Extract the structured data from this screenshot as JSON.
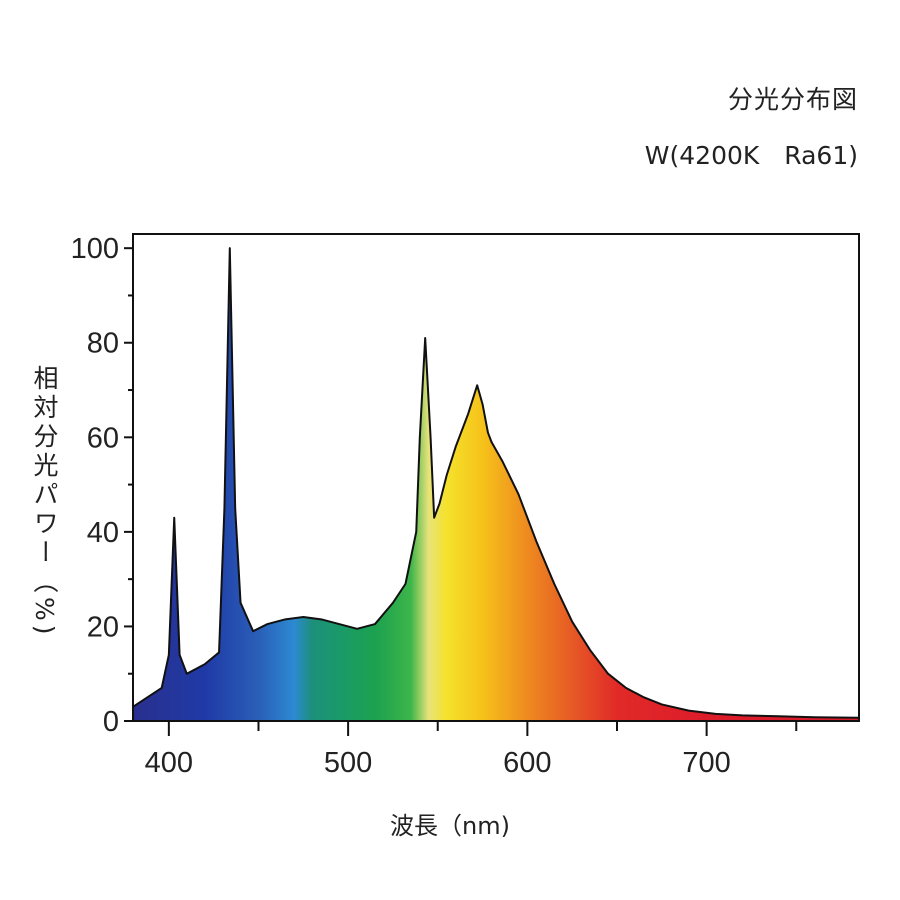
{
  "chart_data": {
    "type": "area",
    "title": "分光分布図",
    "subtitle": "W(4200K　Ra61)",
    "xlabel": "波長（nm)",
    "ylabel": "相対分光パワー（%)",
    "xlim": [
      380,
      785
    ],
    "ylim": [
      0,
      103
    ],
    "x_ticks": [
      400,
      500,
      600,
      700
    ],
    "y_ticks": [
      0,
      20,
      40,
      60,
      80,
      100
    ],
    "x_tick_labels": [
      "400",
      "500",
      "600",
      "700"
    ],
    "y_tick_labels": [
      "0",
      "20",
      "40",
      "60",
      "80",
      "100"
    ],
    "grid": false,
    "legend": "none",
    "fill": "visible spectrum gradient (violet to red)",
    "series": [
      {
        "x": [
          380,
          396,
          400,
          403,
          406,
          410,
          420,
          428,
          431,
          434,
          437,
          440,
          447,
          455,
          465,
          475,
          485,
          495,
          505,
          515,
          525,
          532,
          538,
          540,
          543,
          546,
          548,
          551,
          555,
          560,
          564,
          567,
          572,
          575,
          578,
          580,
          586,
          595,
          605,
          615,
          625,
          635,
          645,
          655,
          665,
          675,
          690,
          705,
          720,
          740,
          760,
          785
        ],
        "y": [
          3,
          7,
          14,
          43,
          14,
          10,
          12,
          14.5,
          45,
          100,
          45,
          25,
          19,
          20.5,
          21.5,
          22,
          21.5,
          20.5,
          19.5,
          20.5,
          25,
          29,
          40,
          60,
          81,
          60,
          43,
          46,
          52,
          58,
          62,
          65,
          71,
          67,
          61,
          59,
          55,
          48,
          38,
          29,
          21,
          15,
          10,
          7,
          5,
          3.5,
          2.2,
          1.5,
          1.2,
          1,
          0.8,
          0.7
        ]
      }
    ],
    "spectrum_colors": [
      {
        "wl": 380,
        "color": "#2a2f8e"
      },
      {
        "wl": 420,
        "color": "#1f3aa6"
      },
      {
        "wl": 450,
        "color": "#2a5fb8"
      },
      {
        "wl": 470,
        "color": "#2c8ad2"
      },
      {
        "wl": 480,
        "color": "#1d8f7a"
      },
      {
        "wl": 495,
        "color": "#1a9a6a"
      },
      {
        "wl": 515,
        "color": "#1ca14f"
      },
      {
        "wl": 535,
        "color": "#3db54a"
      },
      {
        "wl": 545,
        "color": "#e8e37a"
      },
      {
        "wl": 555,
        "color": "#f5e22b"
      },
      {
        "wl": 575,
        "color": "#f6c21a"
      },
      {
        "wl": 600,
        "color": "#ee8a20"
      },
      {
        "wl": 625,
        "color": "#e65a25"
      },
      {
        "wl": 650,
        "color": "#e12a28"
      },
      {
        "wl": 700,
        "color": "#dd1c2a"
      },
      {
        "wl": 785,
        "color": "#d81a2a"
      }
    ],
    "stroke_color": "#111111"
  }
}
